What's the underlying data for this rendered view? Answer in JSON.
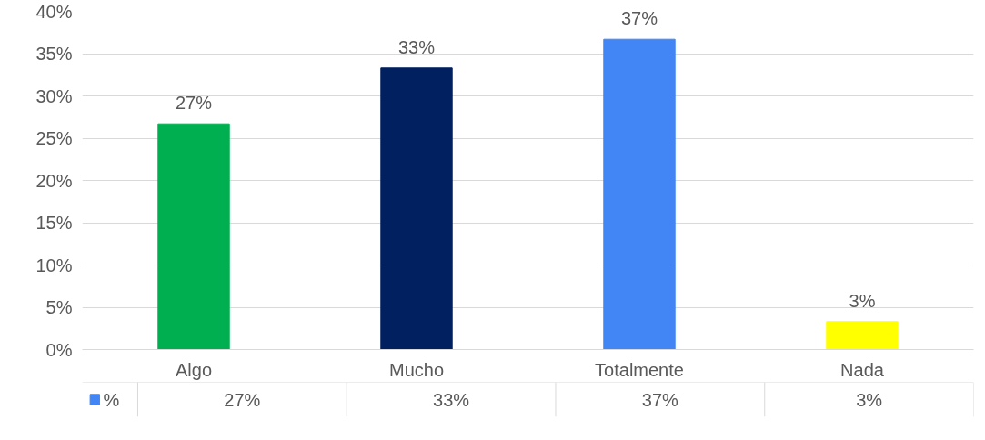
{
  "chart_data": {
    "type": "bar",
    "categories": [
      "Algo",
      "Mucho",
      "Totalmente",
      "Nada"
    ],
    "series": [
      {
        "name": "%",
        "color": "#4285f4",
        "colors": [
          "#00b050",
          "#002060",
          "#4285f4",
          "#ffff00"
        ],
        "values": [
          26.7,
          33.3,
          36.7,
          3.3
        ],
        "value_labels": [
          "27%",
          "33%",
          "37%",
          "3%"
        ]
      }
    ],
    "ylim": [
      0,
      40
    ],
    "yticks": [
      {
        "value": 0,
        "label": "0%"
      },
      {
        "value": 5,
        "label": "5%"
      },
      {
        "value": 10,
        "label": "10%"
      },
      {
        "value": 15,
        "label": "15%"
      },
      {
        "value": 20,
        "label": "20%"
      },
      {
        "value": 25,
        "label": "25%"
      },
      {
        "value": 30,
        "label": "30%"
      },
      {
        "value": 35,
        "label": "35%"
      },
      {
        "value": 40,
        "label": "40%"
      }
    ],
    "grid": "y",
    "legend": "bottom"
  }
}
